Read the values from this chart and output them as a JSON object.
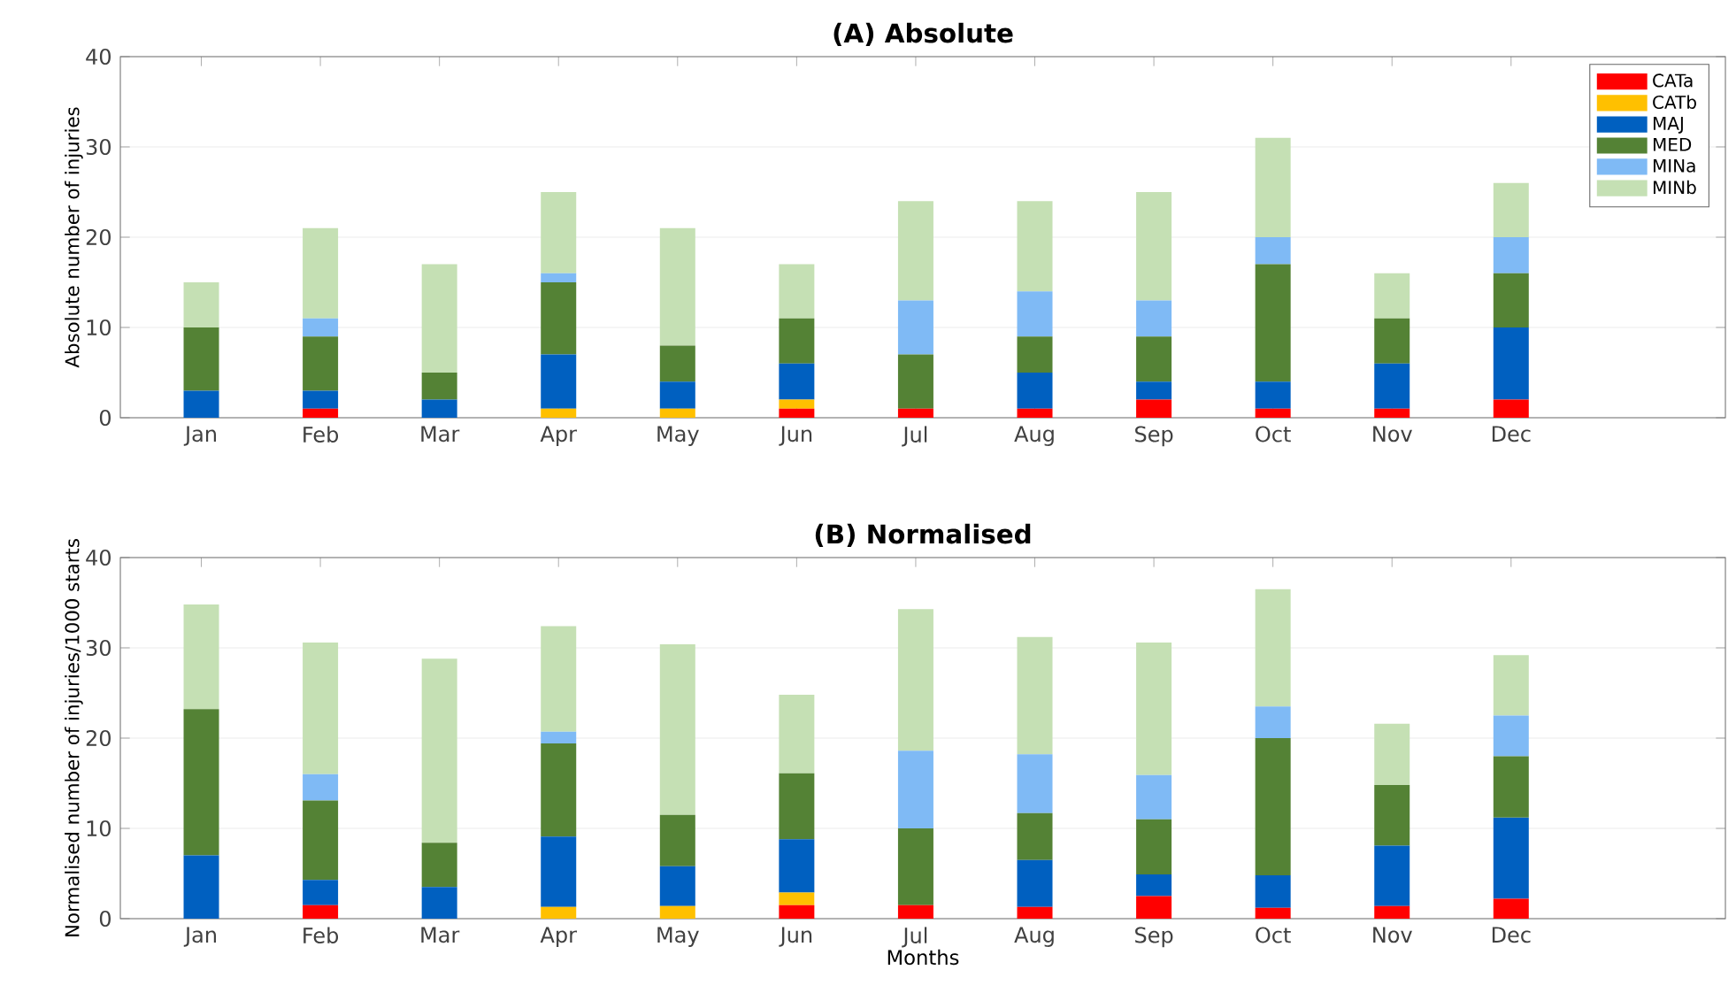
{
  "chart_data": [
    {
      "type": "bar",
      "title": "(A) Absolute",
      "ylabel": "Absolute number of injuries",
      "stacked": true,
      "grid": "y",
      "legend": "top right",
      "categories": [
        "Jan",
        "Feb",
        "Mar",
        "Apr",
        "May",
        "Jun",
        "Jul",
        "Aug",
        "Sep",
        "Oct",
        "Nov",
        "Dec"
      ],
      "ylim": [
        0,
        40
      ],
      "yticks": [
        0,
        10,
        20,
        30,
        40
      ],
      "series": [
        {
          "name": "CATa",
          "color": "#ff0000",
          "values": [
            0,
            1,
            0,
            0,
            0,
            1,
            1,
            1,
            2,
            1,
            1,
            2
          ]
        },
        {
          "name": "CATb",
          "color": "#ffc000",
          "values": [
            0,
            0,
            0,
            1,
            1,
            1,
            0,
            0,
            0,
            0,
            0,
            0
          ]
        },
        {
          "name": "MAJ",
          "color": "#0060c0",
          "values": [
            3,
            2,
            2,
            6,
            3,
            4,
            0,
            4,
            2,
            3,
            5,
            8
          ]
        },
        {
          "name": "MED",
          "color": "#548235",
          "values": [
            7,
            6,
            3,
            8,
            4,
            5,
            6,
            4,
            5,
            13,
            5,
            6
          ]
        },
        {
          "name": "MINa",
          "color": "#7fbaf5",
          "values": [
            0,
            2,
            0,
            1,
            0,
            0,
            6,
            5,
            4,
            3,
            0,
            4
          ]
        },
        {
          "name": "MINb",
          "color": "#c5e0b4",
          "values": [
            5,
            10,
            12,
            9,
            13,
            6,
            11,
            10,
            12,
            11,
            5,
            6
          ]
        }
      ]
    },
    {
      "type": "bar",
      "title": "(B) Normalised",
      "xlabel": "Months",
      "ylabel": "Normalised number of injuries/1000 starts",
      "stacked": true,
      "grid": "y",
      "categories": [
        "Jan",
        "Feb",
        "Mar",
        "Apr",
        "May",
        "Jun",
        "Jul",
        "Aug",
        "Sep",
        "Oct",
        "Nov",
        "Dec"
      ],
      "ylim": [
        0,
        40
      ],
      "yticks": [
        0,
        10,
        20,
        30,
        40
      ],
      "series": [
        {
          "color": "#ff0000",
          "values": [
            0,
            1.5,
            0,
            0,
            0,
            1.5,
            1.5,
            1.3,
            2.5,
            1.2,
            1.4,
            2.2
          ]
        },
        {
          "color": "#ffc000",
          "values": [
            0,
            0,
            0,
            1.3,
            1.4,
            1.4,
            0,
            0,
            0,
            0,
            0,
            0
          ]
        },
        {
          "color": "#0060c0",
          "values": [
            7.0,
            2.8,
            3.5,
            7.8,
            4.4,
            5.9,
            0,
            5.2,
            2.4,
            3.6,
            6.7,
            9.0
          ]
        },
        {
          "color": "#548235",
          "values": [
            16.2,
            8.8,
            4.9,
            10.3,
            5.7,
            7.3,
            8.5,
            5.2,
            6.1,
            15.2,
            6.7,
            6.8
          ]
        },
        {
          "color": "#7fbaf5",
          "values": [
            0,
            2.9,
            0,
            1.3,
            0,
            0,
            8.6,
            6.5,
            4.9,
            3.5,
            0,
            4.5
          ]
        },
        {
          "color": "#c5e0b4",
          "values": [
            11.6,
            14.6,
            20.4,
            11.7,
            18.9,
            8.7,
            15.7,
            13.0,
            14.7,
            13.0,
            6.8,
            6.7
          ]
        }
      ]
    }
  ]
}
